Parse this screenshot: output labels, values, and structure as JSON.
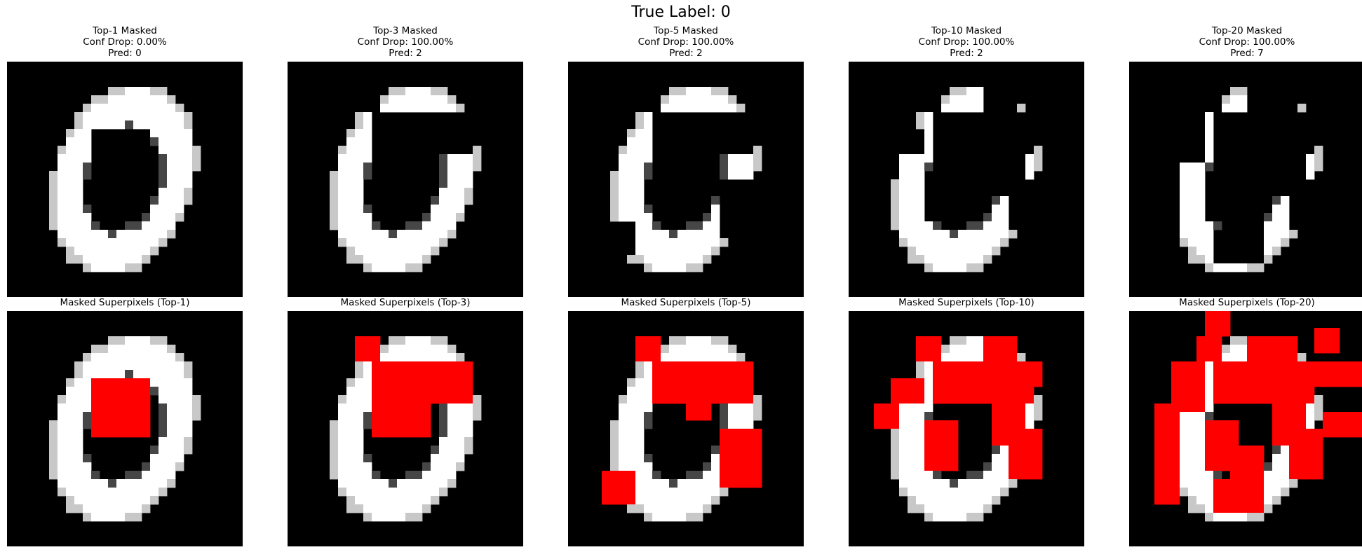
{
  "figure": {
    "title": "True Label: 0",
    "grid_size": 28,
    "mask_color": "#ff0000",
    "background_color": "#000000"
  },
  "panels": [
    {
      "k": 1,
      "top_title": [
        "Top-1 Masked",
        "Conf Drop: 0.00%",
        "Pred: 0"
      ],
      "bottom_title": "Masked Superpixels (Top-1)",
      "masked_regions": [
        [
          8,
          15,
          10,
          17
        ]
      ]
    },
    {
      "k": 3,
      "top_title": [
        "Top-3 Masked",
        "Conf Drop: 100.00%",
        "Pred: 2"
      ],
      "bottom_title": "Masked Superpixels (Top-3)",
      "masked_regions": [
        [
          8,
          15,
          10,
          17
        ],
        [
          6,
          11,
          10,
          22
        ],
        [
          3,
          6,
          8,
          11
        ]
      ]
    },
    {
      "k": 5,
      "top_title": [
        "Top-5 Masked",
        "Conf Drop: 100.00%",
        "Pred: 2"
      ],
      "bottom_title": "Masked Superpixels (Top-5)",
      "masked_regions": [
        [
          14,
          21,
          18,
          23
        ],
        [
          6,
          11,
          10,
          22
        ],
        [
          8,
          13,
          14,
          17
        ],
        [
          3,
          6,
          8,
          11
        ],
        [
          19,
          23,
          4,
          8
        ]
      ]
    },
    {
      "k": 10,
      "top_title": [
        "Top-10 Masked",
        "Conf Drop: 100.00%",
        "Pred: 2"
      ],
      "bottom_title": "Masked Superpixels (Top-10)",
      "masked_regions": [
        [
          6,
          11,
          10,
          22
        ],
        [
          3,
          6,
          8,
          11
        ],
        [
          6,
          9,
          19,
          23
        ],
        [
          6,
          10,
          14,
          19
        ],
        [
          10,
          16,
          17,
          21
        ],
        [
          14,
          20,
          19,
          23
        ],
        [
          8,
          11,
          5,
          9
        ],
        [
          11,
          14,
          3,
          6
        ],
        [
          13,
          19,
          9,
          13
        ],
        [
          3,
          6,
          16,
          20
        ]
      ]
    },
    {
      "k": 20,
      "top_title": [
        "Top-20 Masked",
        "Conf Drop: 100.00%",
        "Pred: 7"
      ],
      "bottom_title": "Masked Superpixels (Top-20)",
      "masked_regions": [
        [
          6,
          11,
          10,
          22
        ],
        [
          3,
          6,
          8,
          11
        ],
        [
          6,
          9,
          19,
          23
        ],
        [
          6,
          10,
          14,
          19
        ],
        [
          10,
          16,
          17,
          21
        ],
        [
          14,
          20,
          19,
          23
        ],
        [
          8,
          11,
          5,
          9
        ],
        [
          11,
          14,
          3,
          6
        ],
        [
          13,
          19,
          9,
          13
        ],
        [
          3,
          6,
          16,
          20
        ],
        [
          0,
          3,
          9,
          12
        ],
        [
          3,
          8,
          14,
          16
        ],
        [
          6,
          11,
          5,
          9
        ],
        [
          16,
          24,
          12,
          16
        ],
        [
          2,
          5,
          22,
          25
        ],
        [
          14,
          23,
          3,
          6
        ],
        [
          6,
          9,
          23,
          28
        ],
        [
          12,
          15,
          23,
          28
        ],
        [
          20,
          24,
          10,
          14
        ],
        [
          9,
          12,
          6,
          9
        ]
      ]
    }
  ]
}
